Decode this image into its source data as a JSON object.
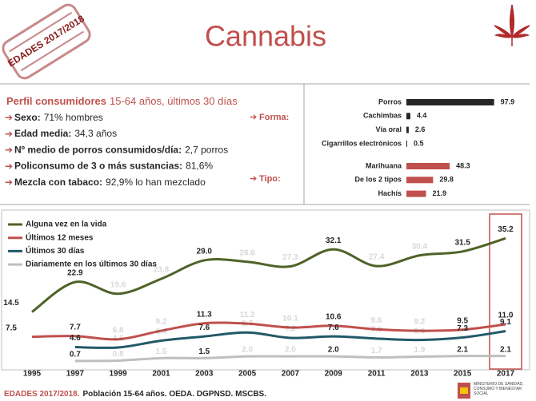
{
  "header": {
    "stamp": "EDADES 2017/2018",
    "title": "Cannabis"
  },
  "profile": {
    "title": "Perfil consumidores",
    "subtitle": "15-64 años, últimos 30 días",
    "items": [
      {
        "label": "Sexo:",
        "value": "71% hombres"
      },
      {
        "label": "Edad media:",
        "value": "34,3 años"
      },
      {
        "label": "Nº medio de porros consumidos/día:",
        "value": "2,7 porros"
      },
      {
        "label": "Policonsumo de 3 o más sustancias:",
        "value": "81,6%"
      },
      {
        "label": "Mezcla con tabaco:",
        "value": "92,9% lo han mezclado"
      }
    ]
  },
  "chart_data": [
    {
      "type": "hbar",
      "title": "Forma:",
      "categories": [
        "Porros",
        "Cachimbas",
        "Vía oral",
        "Cigarrillos electrónicos"
      ],
      "values": [
        97.9,
        4.4,
        2.6,
        0.5
      ],
      "color": "#262626",
      "xlim": [
        0,
        100
      ]
    },
    {
      "type": "hbar",
      "title": "Tipo:",
      "categories": [
        "Marihuana",
        "De los 2 tipos",
        "Hachís"
      ],
      "values": [
        48.3,
        29.8,
        21.9
      ],
      "color": "#c0504d",
      "xlim": [
        0,
        100
      ]
    },
    {
      "type": "line",
      "categories": [
        "1995",
        "1997",
        "1999",
        "2001",
        "2003",
        "2005",
        "2007",
        "2009",
        "2011",
        "2013",
        "2015",
        "2017"
      ],
      "ylim": [
        0,
        40
      ],
      "series": [
        {
          "name": "Alguna vez en la vida",
          "color": "#4f6228",
          "values": [
            14.5,
            22.9,
            19.6,
            23.8,
            29.0,
            28.6,
            27.3,
            32.1,
            27.4,
            30.4,
            31.5,
            35.2
          ],
          "value_labels": [
            "14.5",
            "22.9",
            "19.6",
            "23.8",
            "29.0",
            "28.6",
            "27.3",
            "32.1",
            "27.4",
            "30.4",
            "31.5",
            "35.2"
          ]
        },
        {
          "name": "Últimos 12 meses",
          "color": "#c0504d",
          "values": [
            7.5,
            7.7,
            6.8,
            9.2,
            11.3,
            11.2,
            10.1,
            10.6,
            9.6,
            9.2,
            9.5,
            11.0
          ],
          "value_labels": [
            "7.5",
            "7.7",
            "6.8",
            "9.2",
            "11.3",
            "11.2",
            "10.1",
            "10.6",
            "9.6",
            "9.2",
            "9.5",
            "11.0"
          ]
        },
        {
          "name": "Últimos 30 días",
          "color": "#215968",
          "values": [
            null,
            4.6,
            4.5,
            6.4,
            7.6,
            8.7,
            7.2,
            7.6,
            7.0,
            6.6,
            7.3,
            9.1
          ],
          "value_labels": [
            null,
            "4.6",
            "4.5",
            "6.4",
            "7.6",
            "8.7",
            "7.2",
            "7.6",
            "7.0",
            "6.6",
            "7.3",
            "9.1"
          ]
        },
        {
          "name": "Diariamente en los últimos 30 días",
          "color": "#bfbfbf",
          "values": [
            null,
            0.7,
            0.8,
            1.5,
            1.5,
            2.0,
            2.0,
            2.0,
            1.7,
            1.9,
            2.1,
            2.1
          ],
          "value_labels": [
            null,
            "0.7",
            "0.8",
            "1.5",
            "1.5",
            "2.0",
            "2.0",
            "2.0",
            "1.7",
            "1.9",
            "2.1",
            "2.1"
          ]
        }
      ]
    }
  ],
  "footer": {
    "highlight": "EDADES 2017/2018.",
    "text": "Población 15-64 años. OEDA. DGPNSD. MSCBS."
  },
  "logo": {
    "text": "MINISTERIO DE SANIDAD, CONSUMO Y BIENESTAR SOCIAL"
  }
}
